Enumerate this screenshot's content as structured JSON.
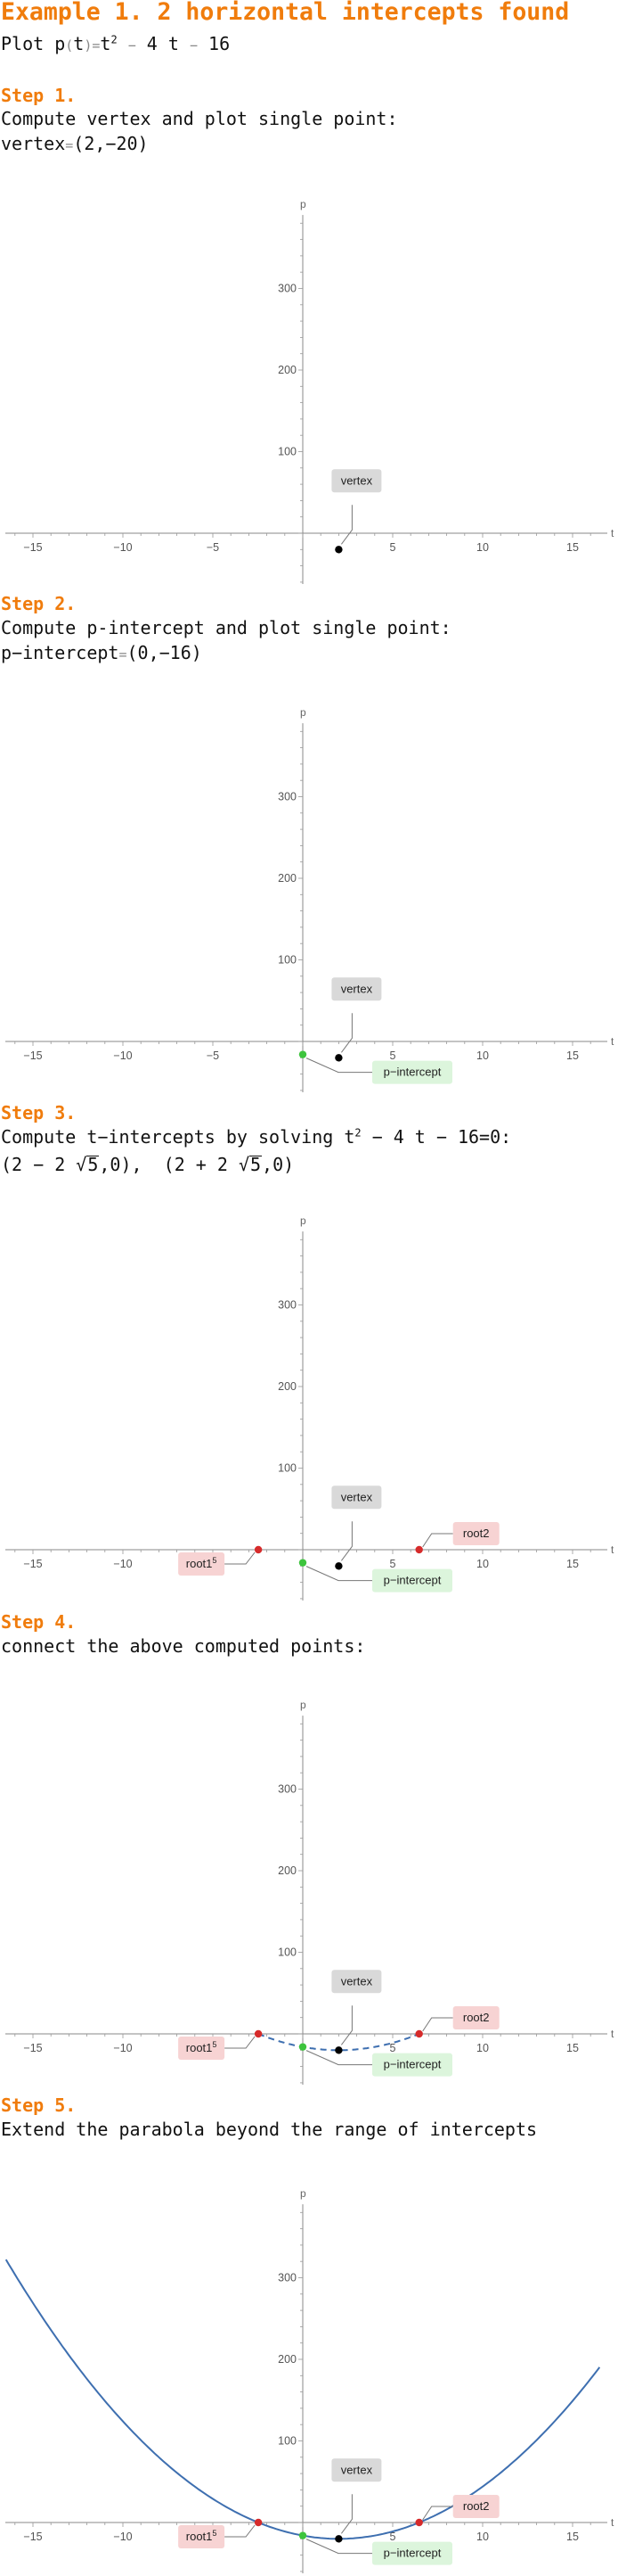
{
  "title": "Example 1. 2 horizontal intercepts found",
  "problem": {
    "prefix": "Plot p",
    "lparen": "(",
    "var": "t",
    "rparen": ")",
    "eq": "=",
    "t": "t",
    "exp": "2",
    "minus": "−",
    "term2": "4 t",
    "term3": "16"
  },
  "steps": [
    {
      "heading": "Step 1.",
      "line1": "Compute vertex and plot single point:",
      "line2": {
        "label": "vertex",
        "eq": "=",
        "value": "(2,−20)"
      }
    },
    {
      "heading": "Step 2.",
      "line1": "Compute p-intercept and plot single point:",
      "line2": {
        "label": "p−intercept",
        "eq": "=",
        "value": "(0,−16)"
      }
    },
    {
      "heading": "Step 3.",
      "line1": {
        "before": "Compute t−intercepts by solving t",
        "exp": "2",
        "after": " − 4 t − 16=0:"
      },
      "line2": {
        "r1_open": "(2 − 2 ",
        "r1_rad_sign": "√",
        "r1_rad": "5",
        "r1_close": ",0),",
        "r2_open": "(2 + 2 ",
        "r2_rad_sign": "√",
        "r2_rad": "5",
        "r2_close": ",0)"
      }
    },
    {
      "heading": "Step 4.",
      "line1": "connect the above computed points:"
    },
    {
      "heading": "Step 5.",
      "line1": "Extend the parabola beyond the range of intercepts"
    }
  ],
  "plot_labels": {
    "vertex": "vertex",
    "p_intercept": "p−intercept",
    "root1": "root1",
    "root1_sup": "5",
    "root2": "root2"
  },
  "colors": {
    "accent": "#f07c0c",
    "curve": "#3e6fb0",
    "vertex_point": "#000000",
    "p_intercept_point": "#3dc43d",
    "root_point": "#d62b2b",
    "vertex_label_bg": "#d9d9d9",
    "p_intercept_label_bg": "#dcf5dc",
    "root_label_bg": "#f7d3d3"
  },
  "chart_data": [
    {
      "type": "scatter",
      "title": "Step 1",
      "xlabel": "t",
      "ylabel": "p",
      "xlim": [
        -17,
        17
      ],
      "ylim": [
        -70,
        390
      ],
      "xticks": [
        -15,
        -10,
        -5,
        5,
        10,
        15
      ],
      "yticks": [
        100,
        200,
        300
      ],
      "points": [
        {
          "name": "vertex",
          "x": 2,
          "y": -20
        }
      ],
      "curve": "none"
    },
    {
      "type": "scatter",
      "title": "Step 2",
      "xlabel": "t",
      "ylabel": "p",
      "xlim": [
        -17,
        17
      ],
      "ylim": [
        -70,
        390
      ],
      "xticks": [
        -15,
        -10,
        -5,
        5,
        10,
        15
      ],
      "yticks": [
        100,
        200,
        300
      ],
      "points": [
        {
          "name": "vertex",
          "x": 2,
          "y": -20
        },
        {
          "name": "p-intercept",
          "x": 0,
          "y": -16
        }
      ],
      "curve": "none"
    },
    {
      "type": "scatter",
      "title": "Step 3",
      "xlabel": "t",
      "ylabel": "p",
      "xlim": [
        -17,
        17
      ],
      "ylim": [
        -70,
        390
      ],
      "xticks": [
        -15,
        -10,
        -5,
        5,
        10,
        15
      ],
      "yticks": [
        100,
        200,
        300
      ],
      "points": [
        {
          "name": "vertex",
          "x": 2,
          "y": -20
        },
        {
          "name": "p-intercept",
          "x": 0,
          "y": -16
        },
        {
          "name": "root1",
          "x": -2.47,
          "y": 0
        },
        {
          "name": "root2",
          "x": 6.47,
          "y": 0
        }
      ],
      "curve": "none"
    },
    {
      "type": "line",
      "title": "Step 4",
      "xlabel": "t",
      "ylabel": "p",
      "xlim": [
        -17,
        17
      ],
      "ylim": [
        -70,
        390
      ],
      "xticks": [
        -15,
        -10,
        -5,
        5,
        10,
        15
      ],
      "yticks": [
        100,
        200,
        300
      ],
      "points": [
        {
          "name": "vertex",
          "x": 2,
          "y": -20
        },
        {
          "name": "p-intercept",
          "x": 0,
          "y": -16
        },
        {
          "name": "root1",
          "x": -2.47,
          "y": 0
        },
        {
          "name": "root2",
          "x": 6.47,
          "y": 0
        }
      ],
      "curve": "dashed",
      "curve_range": [
        -2.47,
        6.47
      ],
      "function": {
        "a": 1,
        "b": -4,
        "c": -16
      }
    },
    {
      "type": "line",
      "title": "Step 5",
      "xlabel": "t",
      "ylabel": "p",
      "xlim": [
        -17,
        17
      ],
      "ylim": [
        -70,
        390
      ],
      "xticks": [
        -15,
        -10,
        -5,
        5,
        10,
        15
      ],
      "yticks": [
        100,
        200,
        300
      ],
      "points": [
        {
          "name": "vertex",
          "x": 2,
          "y": -20
        },
        {
          "name": "p-intercept",
          "x": 0,
          "y": -16
        },
        {
          "name": "root1",
          "x": -2.47,
          "y": 0
        },
        {
          "name": "root2",
          "x": 6.47,
          "y": 0
        }
      ],
      "curve": "solid",
      "curve_range": [
        -16.5,
        16.5
      ],
      "function": {
        "a": 1,
        "b": -4,
        "c": -16
      }
    }
  ]
}
